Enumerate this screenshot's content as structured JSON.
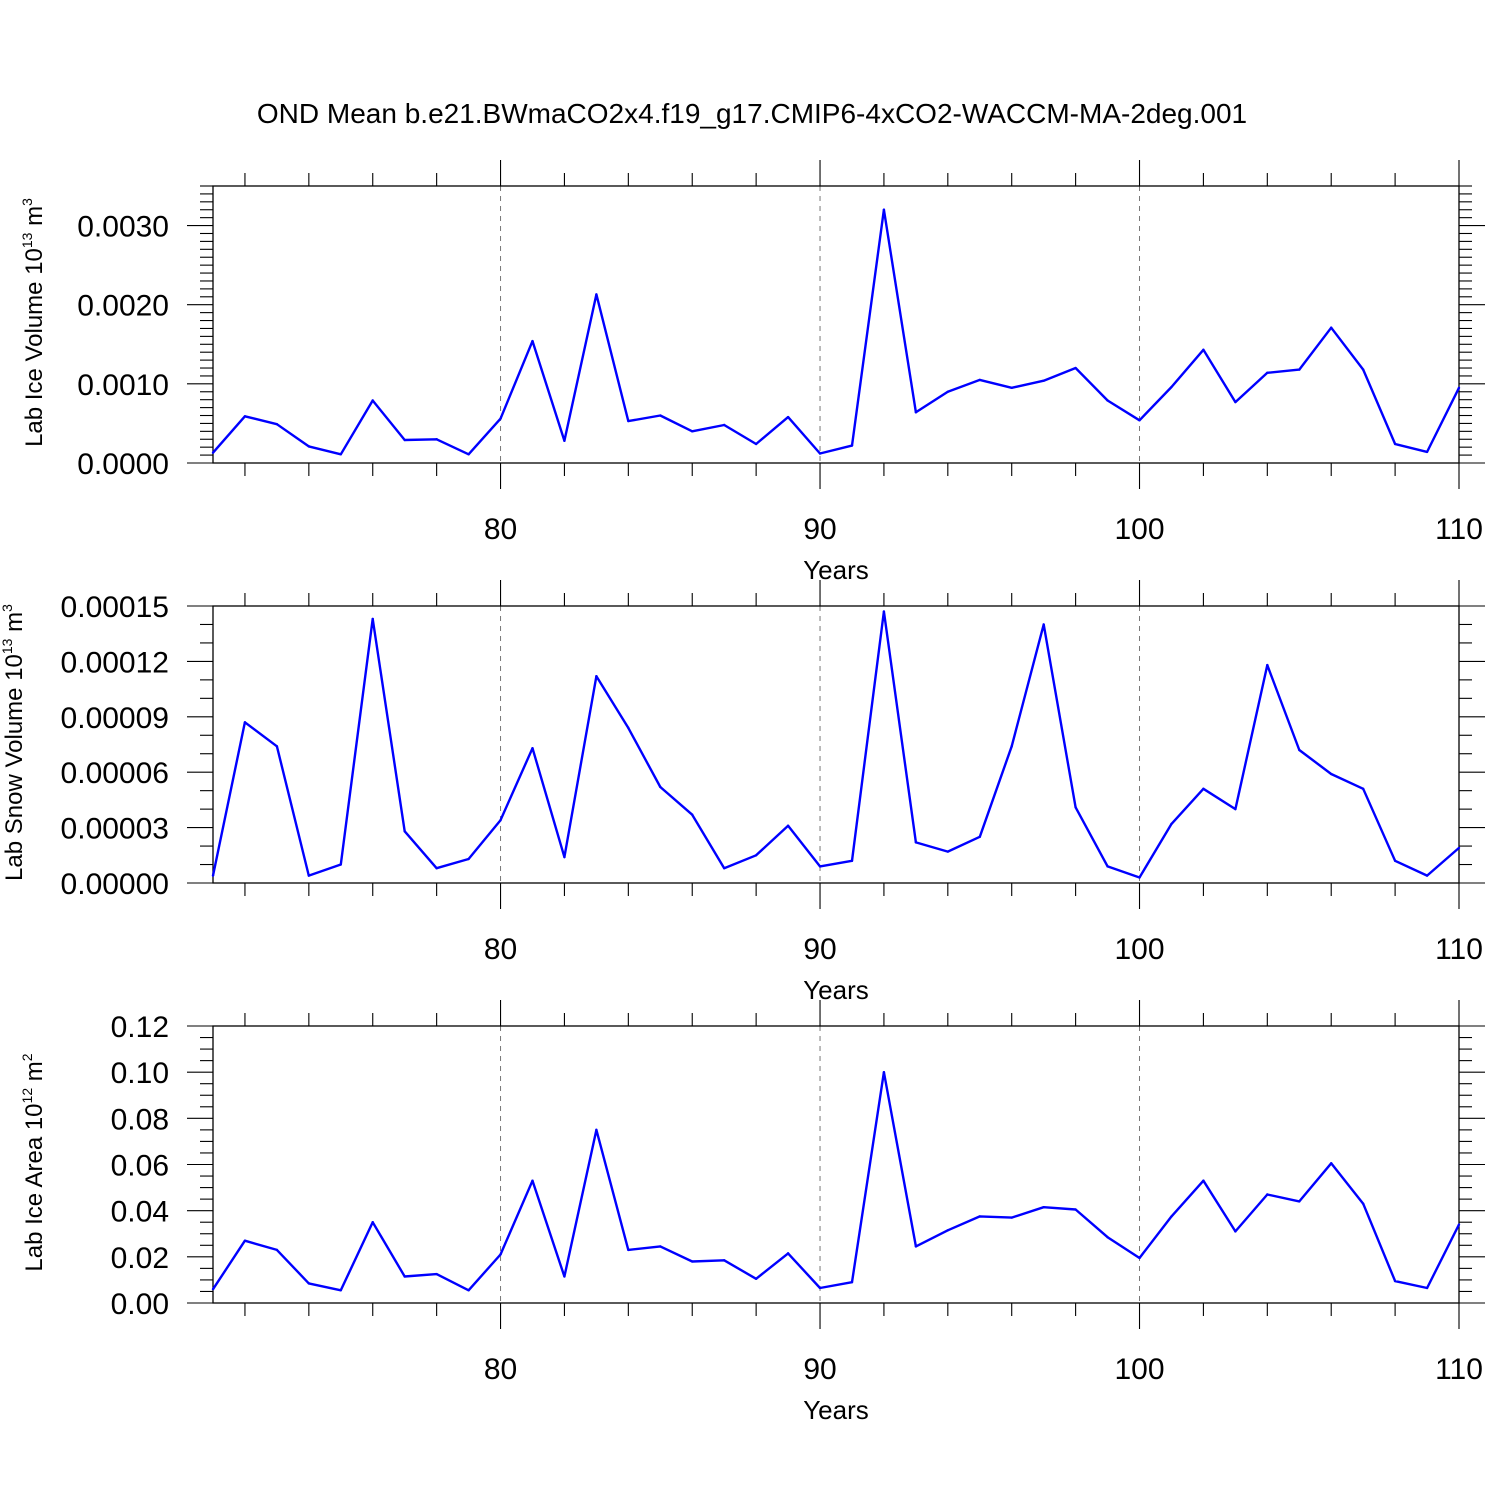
{
  "title": "OND Mean b.e21.BWmaCO2x4.f19_g17.CMIP6-4xCO2-WACCM-MA-2deg.001",
  "colors": {
    "series": "#0000ff",
    "grid": "#777777"
  },
  "chart_data": [
    {
      "type": "line",
      "ylabel": {
        "main": "Lab Ice Volume 10",
        "sup": "13",
        "unit": " m",
        "unit_sup": "3"
      },
      "xlabel": "Years",
      "xlim": [
        71,
        110
      ],
      "ylim": [
        0,
        0.0035
      ],
      "x_ticks": [
        "80",
        "90",
        "100",
        "110"
      ],
      "y_ticks": [
        "0.0000",
        "0.0010",
        "0.0020",
        "0.0030"
      ],
      "y_tick_values": [
        0,
        0.001,
        0.002,
        0.003
      ],
      "x_tick_values": [
        80,
        90,
        100,
        110
      ],
      "grid_x": [
        80,
        90,
        100
      ],
      "grid": true,
      "x": [
        71,
        72,
        73,
        74,
        75,
        76,
        77,
        78,
        79,
        80,
        81,
        82,
        83,
        84,
        85,
        86,
        87,
        88,
        89,
        90,
        91,
        92,
        93,
        94,
        95,
        96,
        97,
        98,
        99,
        100,
        101,
        102,
        103,
        104,
        105,
        106,
        107,
        108,
        109,
        110
      ],
      "values": [
        0.00013,
        0.00059,
        0.00049,
        0.00021,
        0.00011,
        0.00079,
        0.00029,
        0.0003,
        0.00011,
        0.00056,
        0.00154,
        0.00028,
        0.00213,
        0.00053,
        0.0006,
        0.0004,
        0.00048,
        0.00024,
        0.00058,
        0.00012,
        0.00022,
        0.0032,
        0.00064,
        0.0009,
        0.00105,
        0.00095,
        0.00104,
        0.0012,
        0.00079,
        0.00054,
        0.00096,
        0.00143,
        0.00077,
        0.00114,
        0.00118,
        0.00171,
        0.00118,
        0.00024,
        0.00014,
        0.00095
      ]
    },
    {
      "type": "line",
      "ylabel": {
        "main": "Lab Snow Volume 10",
        "sup": "13",
        "unit": " m",
        "unit_sup": "3"
      },
      "xlabel": "Years",
      "xlim": [
        71,
        110
      ],
      "ylim": [
        0,
        0.00015
      ],
      "x_ticks": [
        "80",
        "90",
        "100",
        "110"
      ],
      "y_ticks": [
        "0.00000",
        "0.00003",
        "0.00006",
        "0.00009",
        "0.00012",
        "0.00015"
      ],
      "y_tick_values": [
        0,
        3e-05,
        6e-05,
        9e-05,
        0.00012,
        0.00015
      ],
      "x_tick_values": [
        80,
        90,
        100,
        110
      ],
      "grid_x": [
        80,
        90,
        100
      ],
      "grid": true,
      "x": [
        71,
        72,
        73,
        74,
        75,
        76,
        77,
        78,
        79,
        80,
        81,
        82,
        83,
        84,
        85,
        86,
        87,
        88,
        89,
        90,
        91,
        92,
        93,
        94,
        95,
        96,
        97,
        98,
        99,
        100,
        101,
        102,
        103,
        104,
        105,
        106,
        107,
        108,
        109,
        110
      ],
      "values": [
        4e-06,
        8.7e-05,
        7.4e-05,
        4e-06,
        1e-05,
        0.000143,
        2.8e-05,
        8e-06,
        1.3e-05,
        3.4e-05,
        7.3e-05,
        1.4e-05,
        0.000112,
        8.4e-05,
        5.2e-05,
        3.7e-05,
        8e-06,
        1.5e-05,
        3.1e-05,
        9e-06,
        1.2e-05,
        0.000147,
        2.2e-05,
        1.7e-05,
        2.5e-05,
        7.4e-05,
        0.00014,
        4.1e-05,
        9e-06,
        3e-06,
        3.2e-05,
        5.1e-05,
        4e-05,
        0.000118,
        7.2e-05,
        5.9e-05,
        5.1e-05,
        1.2e-05,
        4e-06,
        1.9e-05
      ]
    },
    {
      "type": "line",
      "ylabel": {
        "main": "Lab Ice Area 10",
        "sup": "12",
        "unit": " m",
        "unit_sup": "2"
      },
      "xlabel": "Years",
      "xlim": [
        71,
        110
      ],
      "ylim": [
        0,
        0.12
      ],
      "x_ticks": [
        "80",
        "90",
        "100",
        "110"
      ],
      "y_ticks": [
        "0.00",
        "0.02",
        "0.04",
        "0.06",
        "0.08",
        "0.10",
        "0.12"
      ],
      "y_tick_values": [
        0,
        0.02,
        0.04,
        0.06,
        0.08,
        0.1,
        0.12
      ],
      "x_tick_values": [
        80,
        90,
        100,
        110
      ],
      "grid_x": [
        80,
        90,
        100
      ],
      "grid": true,
      "x": [
        71,
        72,
        73,
        74,
        75,
        76,
        77,
        78,
        79,
        80,
        81,
        82,
        83,
        84,
        85,
        86,
        87,
        88,
        89,
        90,
        91,
        92,
        93,
        94,
        95,
        96,
        97,
        98,
        99,
        100,
        101,
        102,
        103,
        104,
        105,
        106,
        107,
        108,
        109,
        110
      ],
      "values": [
        0.006,
        0.027,
        0.023,
        0.0085,
        0.0055,
        0.035,
        0.0115,
        0.0125,
        0.0055,
        0.021,
        0.053,
        0.0115,
        0.075,
        0.023,
        0.0245,
        0.018,
        0.0185,
        0.0105,
        0.0215,
        0.0065,
        0.009,
        0.1,
        0.0245,
        0.0315,
        0.0375,
        0.037,
        0.0415,
        0.0405,
        0.0285,
        0.0195,
        0.0375,
        0.053,
        0.031,
        0.047,
        0.044,
        0.0605,
        0.043,
        0.0095,
        0.0065,
        0.034
      ]
    }
  ]
}
